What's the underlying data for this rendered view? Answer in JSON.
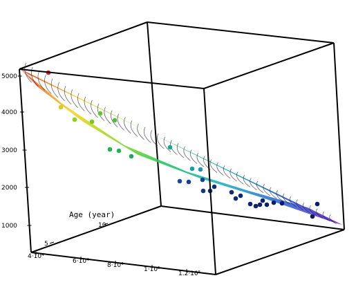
{
  "chart_data": {
    "type": "scatter",
    "kind": "3d-surface-with-points",
    "title": "",
    "x_axis": {
      "label": "",
      "tick_labels": [
        "4·10⁴",
        "6·10⁴",
        "8·10⁴",
        "1·10⁵",
        "1.2·10⁵"
      ],
      "tick_values": [
        40000,
        60000,
        80000,
        100000,
        120000
      ]
    },
    "y_axis": {
      "label": "Age (year)",
      "tick_labels": [
        "5",
        "10"
      ],
      "tick_values": [
        5,
        10
      ]
    },
    "z_axis": {
      "label": "",
      "tick_labels": [
        "1000",
        "2000",
        "3000",
        "4000",
        "5000"
      ],
      "tick_values": [
        1000,
        2000,
        3000,
        4000,
        5000
      ]
    },
    "surface": {
      "colormap": [
        "#ff3b1e",
        "#ffd21a",
        "#7fe017",
        "#15c46a",
        "#17b6c8",
        "#2a6fd8",
        "#7a2bd8"
      ],
      "contour_line_color": "#1a1a2a"
    },
    "points": [
      {
        "z": 5000,
        "color": "#e0201a"
      },
      {
        "z": 4150,
        "color": "#c8d418"
      },
      {
        "z": 3880,
        "color": "#8fd21c"
      },
      {
        "z": 3870,
        "color": "#78c820"
      },
      {
        "z": 4050,
        "color": "#5ec828"
      },
      {
        "z": 3900,
        "color": "#4ec236"
      },
      {
        "z": 3100,
        "color": "#1eb64a"
      },
      {
        "z": 3050,
        "color": "#1eb45a"
      },
      {
        "z": 2850,
        "color": "#18aa6a"
      },
      {
        "z": 3050,
        "color": "#1aa88a"
      },
      {
        "z": 2450,
        "color": "#16a0a8"
      },
      {
        "z": 2450,
        "color": "#1896b4"
      },
      {
        "z": 2100,
        "color": "#164a9c"
      },
      {
        "z": 2050,
        "color": "#153f94"
      },
      {
        "z": 2300,
        "color": "#17428e"
      },
      {
        "z": 1950,
        "color": "#12358a"
      },
      {
        "z": 1950,
        "color": "#122f84"
      },
      {
        "z": 2050,
        "color": "#102c80"
      },
      {
        "z": 1850,
        "color": "#0f2a7e"
      },
      {
        "z": 1800,
        "color": "#0e287a"
      },
      {
        "z": 1850,
        "color": "#0e2678"
      },
      {
        "z": 1600,
        "color": "#0d2476"
      },
      {
        "z": 1500,
        "color": "#0c2274"
      },
      {
        "z": 1550,
        "color": "#0c2070"
      },
      {
        "z": 1600,
        "color": "#0b1f6e"
      },
      {
        "z": 1500,
        "color": "#0b1e6c"
      },
      {
        "z": 1550,
        "color": "#0a1d6a"
      },
      {
        "z": 1550,
        "color": "#0a1c68"
      },
      {
        "z": 1150,
        "color": "#091b66"
      },
      {
        "z": 1500,
        "color": "#0a1c6a"
      }
    ]
  }
}
